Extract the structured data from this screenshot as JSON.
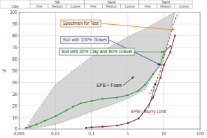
{
  "chart_data": {
    "type": "line",
    "log": "x",
    "grid": true,
    "header": [
      {
        "label": "Clay",
        "to": 0.002
      },
      {
        "label": "Silt",
        "from": 0.002,
        "to": 0.063,
        "parts": [
          "Fine",
          "Medium",
          "Coarse"
        ]
      },
      {
        "label": "Sand",
        "from": 0.063,
        "to": 2,
        "parts": [
          "Fine",
          "Medium",
          "Coarse"
        ]
      },
      {
        "label": "Sand",
        "from": 2,
        "to": 63,
        "parts": [
          "Fine",
          "Medium",
          "Coarse"
        ]
      }
    ],
    "y_label": "%",
    "xlim": [
      0.001,
      100
    ],
    "ylim": [
      0,
      100
    ],
    "xticks": [
      {
        "value": 0.001,
        "label": "0,001"
      },
      {
        "value": 0.01,
        "label": "0,01"
      },
      {
        "value": 0.1,
        "label": "0,1"
      },
      1,
      10,
      100
    ],
    "yticks": [
      0,
      10,
      20,
      30,
      40,
      50,
      60,
      70,
      80,
      90,
      100
    ],
    "series": [
      {
        "type": "area",
        "color": "#c8c8c8",
        "line_style": "dashed",
        "x": [
          0.0015,
          0.003,
          0.01,
          0.03,
          0.1,
          0.3,
          1,
          3,
          10,
          20
        ],
        "values": [
          0,
          15,
          38,
          50,
          62,
          70,
          79,
          86,
          95,
          100
        ],
        "lower": [
          0,
          1,
          4,
          9,
          15,
          20,
          26,
          34,
          62,
          100
        ]
      },
      {
        "type": "line",
        "color": "#2e9a3e",
        "marker": "circle",
        "x": [
          0.0015,
          0.002,
          0.003,
          0.005,
          0.01,
          0.02,
          0.03,
          0.05,
          0.1,
          0.2,
          0.5,
          1,
          2,
          3,
          5,
          8,
          10,
          15
        ],
        "values": [
          1,
          2,
          4,
          7,
          11,
          16,
          19,
          22,
          24,
          26,
          27,
          29,
          33,
          38,
          47,
          55,
          66,
          71
        ]
      },
      {
        "type": "line",
        "color": "#8b2840",
        "marker": "square",
        "x": [
          0.07,
          0.1,
          0.2,
          0.5,
          1,
          2,
          3,
          5,
          8,
          10,
          15,
          20
        ],
        "values": [
          1,
          1.5,
          2,
          3,
          5,
          9,
          16,
          27,
          44,
          55,
          66,
          80
        ]
      },
      {
        "type": "line",
        "color": "#e8262d",
        "line_style": "dashed",
        "x": [
          4,
          6,
          8,
          12,
          18,
          25
        ],
        "values": [
          30,
          40,
          50,
          70,
          90,
          100
        ]
      }
    ],
    "annotations": [
      {
        "text": "Specimen for Test",
        "x": 20,
        "y": 85
      },
      {
        "text": "Soil with 100% Gravel",
        "x": 8,
        "y": 55
      },
      {
        "text": "Soil with 20% Clay and 80% Gravel",
        "x": 10,
        "y": 66
      },
      {
        "text": "EPB + Foam",
        "x": 1.5,
        "y": 45
      },
      {
        "text": "EPB / Slurry Limit",
        "x": 6,
        "y": 40
      }
    ]
  }
}
